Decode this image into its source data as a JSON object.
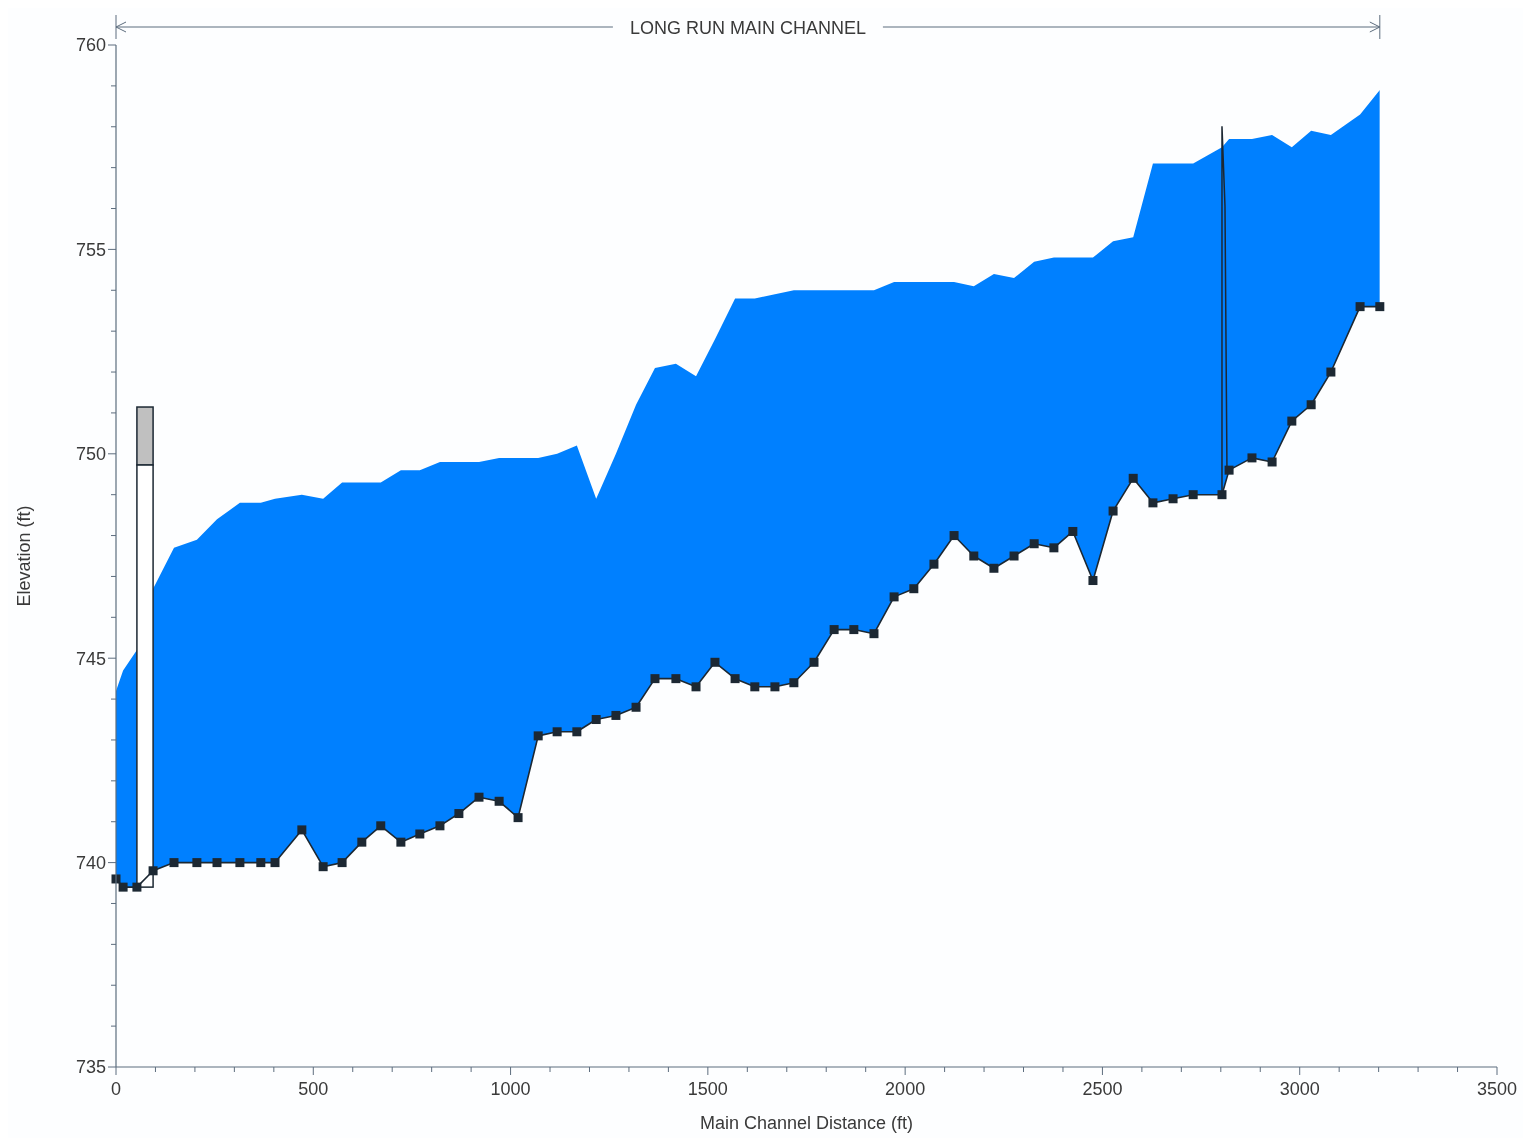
{
  "chart_data": {
    "type": "area",
    "xlabel": "Main Channel Distance (ft)",
    "ylabel": "Elevation (ft)",
    "annotations": [
      "LONG RUN MAIN CHANNEL"
    ],
    "xlim": [
      0,
      3500
    ],
    "ylim": [
      735,
      760
    ],
    "xticks": [
      0,
      {
        "value": 100,
        "label": null
      },
      {
        "value": 200,
        "label": null
      },
      {
        "value": 300,
        "label": null
      },
      {
        "value": 400,
        "label": null
      },
      500,
      {
        "value": 600,
        "label": null
      },
      {
        "value": 700,
        "label": null
      },
      {
        "value": 800,
        "label": null
      },
      {
        "value": 900,
        "label": null
      },
      1000,
      {
        "value": 1100,
        "label": null
      },
      {
        "value": 1200,
        "label": null
      },
      {
        "value": 1300,
        "label": null
      },
      {
        "value": 1400,
        "label": null
      },
      1500,
      {
        "value": 1600,
        "label": null
      },
      {
        "value": 1700,
        "label": null
      },
      {
        "value": 1800,
        "label": null
      },
      {
        "value": 1900,
        "label": null
      },
      2000,
      {
        "value": 2100,
        "label": null
      },
      {
        "value": 2200,
        "label": null
      },
      {
        "value": 2300,
        "label": null
      },
      {
        "value": 2400,
        "label": null
      },
      2500,
      {
        "value": 2600,
        "label": null
      },
      {
        "value": 2700,
        "label": null
      },
      {
        "value": 2800,
        "label": null
      },
      {
        "value": 2900,
        "label": null
      },
      3000,
      {
        "value": 3100,
        "label": null
      },
      {
        "value": 3200,
        "label": null
      },
      {
        "value": 3300,
        "label": null
      },
      {
        "value": 3400,
        "label": null
      },
      3500
    ],
    "yticks": [
      735,
      {
        "value": 736,
        "label": null
      },
      {
        "value": 737,
        "label": null
      },
      {
        "value": 738,
        "label": null
      },
      {
        "value": 739,
        "label": null
      },
      740,
      {
        "value": 741,
        "label": null
      },
      {
        "value": 742,
        "label": null
      },
      {
        "value": 743,
        "label": null
      },
      {
        "value": 744,
        "label": null
      },
      745,
      {
        "value": 746,
        "label": null
      },
      {
        "value": 747,
        "label": null
      },
      {
        "value": 748,
        "label": null
      },
      {
        "value": 749,
        "label": null
      },
      750,
      {
        "value": 751,
        "label": null
      },
      {
        "value": 752,
        "label": null
      },
      {
        "value": 753,
        "label": null
      },
      {
        "value": 754,
        "label": null
      },
      755,
      {
        "value": 756,
        "label": null
      },
      {
        "value": 757,
        "label": null
      },
      {
        "value": 758,
        "label": null
      },
      {
        "value": 759,
        "label": null
      },
      760
    ],
    "x": [
      0,
      18,
      53,
      94,
      147,
      205,
      256,
      314,
      367,
      403,
      471,
      525,
      573,
      623,
      671,
      722,
      770,
      821,
      869,
      920,
      971,
      1019,
      1070,
      1118,
      1168,
      1217,
      1267,
      1318,
      1366,
      1419,
      1470,
      1518,
      1569,
      1619,
      1670,
      1718,
      1769,
      1820,
      1870,
      1921,
      1972,
      2022,
      2073,
      2124,
      2174,
      2225,
      2276,
      2327,
      2377,
      2425,
      2476,
      2527,
      2578,
      2628,
      2679,
      2730,
      2803,
      2821,
      2879,
      2930,
      2980,
      3029,
      3079,
      3153,
      3203
    ],
    "grid": false,
    "series": [
      {
        "color": "#0080ff",
        "values": [
          744.2,
          744.7,
          745.2,
          746.7,
          747.7,
          747.9,
          748.4,
          748.8,
          748.8,
          748.9,
          749.0,
          748.9,
          749.3,
          749.3,
          749.3,
          749.6,
          749.6,
          749.8,
          749.8,
          749.8,
          749.9,
          749.9,
          749.9,
          750.0,
          750.2,
          748.9,
          750.0,
          751.2,
          752.1,
          752.2,
          751.9,
          752.8,
          753.8,
          753.8,
          753.9,
          754.0,
          754.0,
          754.0,
          754.0,
          754.0,
          754.2,
          754.2,
          754.2,
          754.2,
          754.1,
          754.4,
          754.3,
          754.7,
          754.8,
          754.8,
          754.8,
          755.2,
          755.3,
          757.1,
          757.1,
          757.1,
          757.5,
          757.7,
          757.7,
          757.8,
          757.5,
          757.9,
          757.8,
          758.3,
          758.9
        ]
      },
      {
        "type": "line",
        "color": "#1c2833",
        "marker": "square",
        "line_style": "solid",
        "values": [
          739.6,
          739.4,
          739.4,
          739.8,
          740.0,
          740.0,
          740.0,
          740.0,
          740.0,
          740.0,
          740.8,
          739.9,
          740.0,
          740.5,
          740.9,
          740.5,
          740.7,
          740.9,
          741.2,
          741.6,
          741.5,
          741.1,
          743.1,
          743.2,
          743.2,
          743.5,
          743.6,
          743.8,
          744.5,
          744.5,
          744.3,
          744.9,
          744.5,
          744.3,
          744.3,
          744.4,
          744.9,
          745.7,
          745.7,
          745.6,
          746.5,
          746.7,
          747.3,
          748.0,
          747.5,
          747.2,
          747.5,
          747.8,
          747.7,
          748.1,
          746.9,
          748.6,
          749.4,
          748.8,
          748.9,
          749.0,
          749.0,
          749.6,
          749.9,
          749.8,
          750.8,
          751.2,
          752.0,
          753.6,
          753.6
        ]
      }
    ]
  }
}
